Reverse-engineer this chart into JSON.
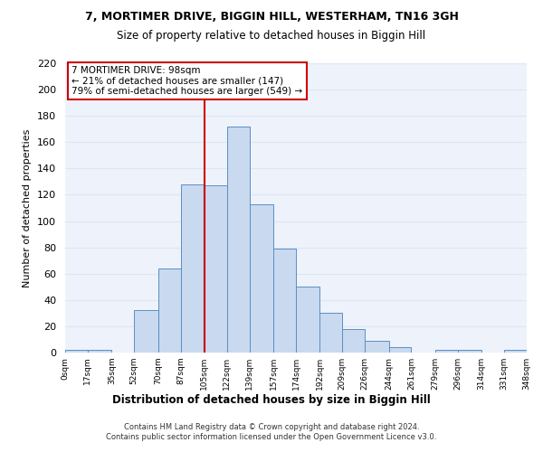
{
  "title1": "7, MORTIMER DRIVE, BIGGIN HILL, WESTERHAM, TN16 3GH",
  "title2": "Size of property relative to detached houses in Biggin Hill",
  "xlabel": "Distribution of detached houses by size in Biggin Hill",
  "ylabel": "Number of detached properties",
  "bin_labels": [
    "0sqm",
    "17sqm",
    "35sqm",
    "52sqm",
    "70sqm",
    "87sqm",
    "105sqm",
    "122sqm",
    "139sqm",
    "157sqm",
    "174sqm",
    "192sqm",
    "209sqm",
    "226sqm",
    "244sqm",
    "261sqm",
    "279sqm",
    "296sqm",
    "314sqm",
    "331sqm",
    "348sqm"
  ],
  "bar_heights": [
    2,
    2,
    0,
    32,
    64,
    128,
    127,
    172,
    113,
    79,
    50,
    30,
    18,
    9,
    4,
    0,
    2,
    2,
    0,
    2
  ],
  "bar_color": "#c9d9f0",
  "bar_edge_color": "#5a8fc4",
  "vline_x_bin": 6,
  "vline_color": "#cc0000",
  "annotation_text": "7 MORTIMER DRIVE: 98sqm\n← 21% of detached houses are smaller (147)\n79% of semi-detached houses are larger (549) →",
  "footer": "Contains HM Land Registry data © Crown copyright and database right 2024.\nContains public sector information licensed under the Open Government Licence v3.0.",
  "ylim": [
    0,
    220
  ],
  "yticks": [
    0,
    20,
    40,
    60,
    80,
    100,
    120,
    140,
    160,
    180,
    200,
    220
  ],
  "bin_edges": [
    0,
    17,
    35,
    52,
    70,
    87,
    105,
    122,
    139,
    157,
    174,
    192,
    209,
    226,
    244,
    261,
    279,
    296,
    314,
    331,
    348
  ],
  "grid_color": "#dce6f5",
  "bg_color": "#eef2fa"
}
